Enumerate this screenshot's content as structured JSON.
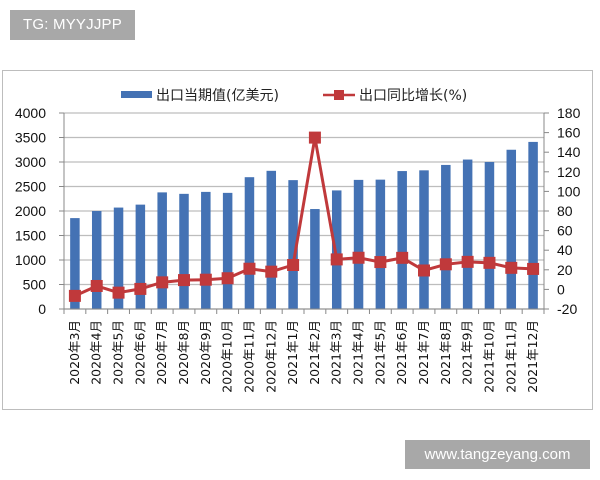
{
  "watermarks": {
    "top_left": "TG: MYYJJPP",
    "bottom_right": "www.tangzeyang.com"
  },
  "colors": {
    "bar": "#4472b4",
    "line": "#c0393b",
    "grid": "#bdbdbd",
    "watermark_bg": "#a8a8a8"
  },
  "chart_data": {
    "type": "bar",
    "title": "",
    "xlabel": "",
    "ylabel": "出口当期值(亿美元)",
    "y2label": "出口同比增长(%)",
    "ylim": [
      0,
      4000
    ],
    "y2lim": [
      -20,
      180
    ],
    "yticks": [
      0,
      500,
      1000,
      1500,
      2000,
      2500,
      3000,
      3500,
      4000
    ],
    "y2ticks": [
      -20,
      0,
      20,
      40,
      60,
      80,
      100,
      120,
      140,
      160,
      180
    ],
    "grid": true,
    "legend_position": "top",
    "categories": [
      "2020年3月",
      "2020年4月",
      "2020年5月",
      "2020年6月",
      "2020年7月",
      "2020年8月",
      "2020年9月",
      "2020年10月",
      "2020年11月",
      "2020年12月",
      "2021年1月",
      "2021年2月",
      "2021年3月",
      "2021年4月",
      "2021年5月",
      "2021年6月",
      "2021年7月",
      "2021年8月",
      "2021年9月",
      "2021年10月",
      "2021年11月",
      "2021年12月"
    ],
    "series": [
      {
        "name": "出口当期值(亿美元)",
        "type": "bar",
        "axis": "left",
        "values": [
          1855,
          2000,
          2070,
          2130,
          2380,
          2350,
          2390,
          2370,
          2690,
          2820,
          2630,
          2040,
          2420,
          2635,
          2640,
          2815,
          2830,
          2940,
          3050,
          3000,
          3250,
          3410
        ]
      },
      {
        "name": "出口同比增长(%)",
        "type": "line",
        "axis": "right",
        "values": [
          -6.6,
          3.5,
          -3.3,
          0.5,
          7.2,
          9.5,
          9.9,
          11.4,
          21.1,
          18.1,
          24.9,
          154.9,
          30.6,
          32.3,
          27.9,
          32.2,
          19.3,
          25.6,
          28.1,
          27.1,
          22.0,
          20.9
        ]
      }
    ]
  }
}
